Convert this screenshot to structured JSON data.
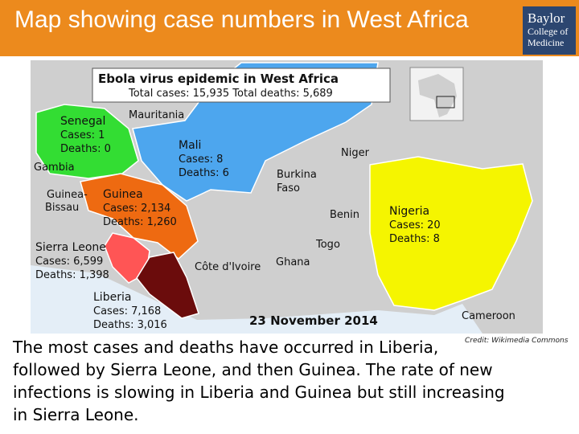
{
  "header": {
    "title": "Map showing case numbers in West Africa",
    "logo": [
      "Baylor",
      "College of",
      "Medicine"
    ]
  },
  "map": {
    "title": "Ebola virus epidemic in West Africa",
    "totals": "Total cases: 15,935 Total deaths: 5,689",
    "date": "23 November 2014",
    "countries": [
      {
        "name": "Senegal",
        "cases": "Cases: 1",
        "deaths": "Deaths: 0"
      },
      {
        "name": "Mali",
        "cases": "Cases: 8",
        "deaths": "Deaths: 6"
      },
      {
        "name": "Guinea",
        "cases": "Cases: 2,134",
        "deaths": "Deaths: 1,260"
      },
      {
        "name": "Sierra Leone",
        "cases": "Cases: 6,599",
        "deaths": "Deaths: 1,398"
      },
      {
        "name": "Liberia",
        "cases": "Cases: 7,168",
        "deaths": "Deaths: 3,016"
      },
      {
        "name": "Nigeria",
        "cases": "Cases: 20",
        "deaths": "Deaths: 8"
      }
    ],
    "other_labels": [
      "Mauritania",
      "Gambia",
      "Guinea-",
      "Bissau",
      "Niger",
      "Burkina",
      "Faso",
      "Benin",
      "Togo",
      "Côte d'Ivoire",
      "Ghana",
      "Cameroon"
    ]
  },
  "credit": "Credit:  Wikimedia Commons",
  "body": {
    "lines": [
      "The most cases and deaths have occurred in Liberia,",
      "followed by Sierra Leone, and then Guinea. The rate of new",
      "infections is slowing in Liberia and Guinea but still increasing",
      "in Sierra Leone."
    ]
  }
}
